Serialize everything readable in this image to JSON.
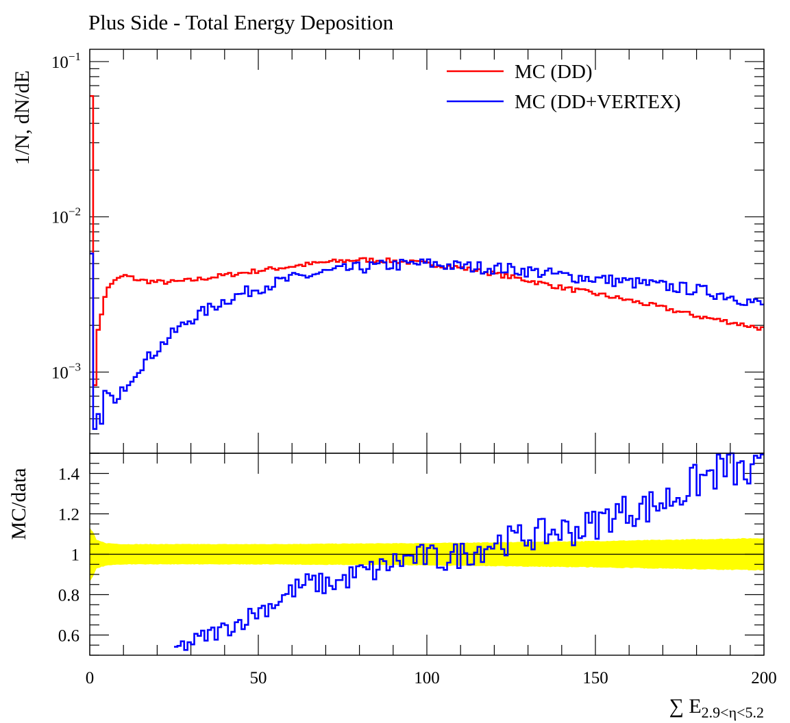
{
  "chart_data": [
    {
      "type": "line",
      "panel": "main",
      "title": "Plus Side - Total Energy Deposition",
      "ylabel": "1/N, dN/dE",
      "xlim": [
        0,
        200
      ],
      "ylim": [
        0.0003,
        0.12
      ],
      "yscale": "log",
      "yticks": [
        0.001,
        0.01,
        0.1
      ],
      "ytick_labels": [
        {
          "base": "10",
          "exp": "−3"
        },
        {
          "base": "10",
          "exp": "−2"
        },
        {
          "base": "10",
          "exp": "−1"
        }
      ],
      "legend_position": "top-right",
      "grid": false,
      "series": [
        {
          "name": "MC (DD)",
          "color": "#ff0000",
          "x": [
            0,
            1,
            2,
            3,
            4,
            5,
            6,
            8,
            10,
            15,
            20,
            25,
            30,
            40,
            50,
            60,
            70,
            80,
            90,
            100,
            110,
            120,
            130,
            140,
            150,
            160,
            170,
            180,
            190,
            200
          ],
          "y": [
            0.06,
            0.0008,
            0.0019,
            0.0024,
            0.003,
            0.0035,
            0.0037,
            0.0039,
            0.0042,
            0.0039,
            0.0038,
            0.0038,
            0.0039,
            0.0042,
            0.0045,
            0.0048,
            0.0051,
            0.0053,
            0.0052,
            0.005,
            0.0047,
            0.0043,
            0.0039,
            0.0035,
            0.0032,
            0.0029,
            0.0026,
            0.0023,
            0.0021,
            0.0019
          ]
        },
        {
          "name": "MC (DD+VERTEX)",
          "color": "#0000ff",
          "x": [
            0,
            1,
            2,
            3,
            4,
            5,
            6,
            8,
            10,
            15,
            20,
            25,
            30,
            40,
            50,
            60,
            70,
            80,
            90,
            100,
            110,
            120,
            130,
            140,
            150,
            160,
            170,
            180,
            190,
            200
          ],
          "y": [
            0.0058,
            0.0004,
            0.0005,
            0.00045,
            0.0007,
            0.0008,
            0.0007,
            0.0006,
            0.0008,
            0.0011,
            0.0014,
            0.0018,
            0.0022,
            0.0029,
            0.0035,
            0.004,
            0.0044,
            0.0047,
            0.0049,
            0.005,
            0.0048,
            0.0047,
            0.0045,
            0.0042,
            0.004,
            0.0038,
            0.0036,
            0.0034,
            0.0031,
            0.0027
          ]
        }
      ]
    },
    {
      "type": "line",
      "panel": "ratio",
      "ylabel": "MC/data",
      "xlabel": "∑ E",
      "xlabel_sub": "2.9<η<5.2",
      "xlim": [
        0,
        200
      ],
      "ylim": [
        0.5,
        1.5
      ],
      "xticks": [
        0,
        50,
        100,
        150,
        200
      ],
      "xtick_labels": [
        "0",
        "50",
        "100",
        "150",
        "200"
      ],
      "yticks": [
        0.6,
        0.8,
        1,
        1.2,
        1.4
      ],
      "ytick_labels": [
        "0.6",
        "0.8",
        "1",
        "1.2",
        "1.4"
      ],
      "grid": false,
      "band": {
        "color": "#ffff00",
        "x": [
          0,
          1,
          2,
          5,
          10,
          50,
          100,
          150,
          200
        ],
        "half_width": [
          0.13,
          0.11,
          0.07,
          0.055,
          0.05,
          0.05,
          0.055,
          0.065,
          0.08
        ]
      },
      "reference_line": 1,
      "series": [
        {
          "name": "MC (DD+VERTEX)",
          "color": "#0000ff",
          "x": [
            25,
            30,
            35,
            40,
            45,
            50,
            55,
            60,
            65,
            70,
            75,
            80,
            85,
            90,
            95,
            100,
            105,
            110,
            115,
            120,
            125,
            130,
            135,
            140,
            145,
            150,
            155,
            160,
            165,
            170,
            175,
            180,
            185,
            190,
            195,
            200
          ],
          "y": [
            0.53,
            0.56,
            0.6,
            0.63,
            0.67,
            0.72,
            0.76,
            0.82,
            0.86,
            0.85,
            0.87,
            0.91,
            0.92,
            0.96,
            0.98,
            0.99,
            0.97,
            1.0,
            1.02,
            1.06,
            1.07,
            1.09,
            1.1,
            1.12,
            1.12,
            1.15,
            1.2,
            1.22,
            1.23,
            1.26,
            1.3,
            1.36,
            1.4,
            1.44,
            1.38,
            1.42
          ]
        }
      ]
    }
  ]
}
